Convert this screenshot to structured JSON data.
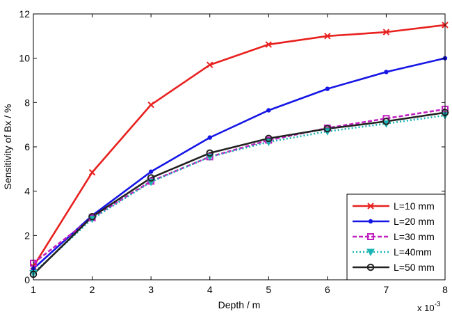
{
  "chart_data": {
    "type": "line",
    "title": "",
    "xlabel": "Depth / m",
    "ylabel": "Sensitivity of Bx / %",
    "x_multiplier": "x 10",
    "x_multiplier_exp": "-3",
    "x": [
      1,
      2,
      3,
      4,
      5,
      6,
      7,
      8
    ],
    "xlim": [
      1,
      8
    ],
    "ylim": [
      0,
      12
    ],
    "xticks": [
      "1",
      "2",
      "3",
      "4",
      "5",
      "6",
      "7",
      "8"
    ],
    "yticks": [
      "0",
      "2",
      "4",
      "6",
      "8",
      "10",
      "12"
    ],
    "grid": false,
    "legend_position": "bottom-right",
    "series": [
      {
        "name": "L=10 mm",
        "color": "#e8201e",
        "marker": "x",
        "dash": "solid",
        "values": [
          0.6,
          4.85,
          7.9,
          9.7,
          10.62,
          11.0,
          11.18,
          11.5
        ]
      },
      {
        "name": "L=20 mm",
        "color": "#1515e6",
        "marker": "dot",
        "dash": "solid",
        "values": [
          0.5,
          2.9,
          4.88,
          6.42,
          7.65,
          8.62,
          9.38,
          10.0
        ]
      },
      {
        "name": "L=30 mm",
        "color": "#c020c0",
        "marker": "square",
        "dash": "dashed",
        "values": [
          0.75,
          2.8,
          4.45,
          5.55,
          6.3,
          6.85,
          7.28,
          7.7
        ]
      },
      {
        "name": "L=40mm",
        "color": "#1ab3b3",
        "marker": "triangle-down",
        "dash": "dotted",
        "values": [
          0.3,
          2.75,
          4.42,
          5.55,
          6.22,
          6.7,
          7.05,
          7.42
        ]
      },
      {
        "name": "L=50 mm",
        "color": "#222222",
        "marker": "circle",
        "dash": "solid",
        "values": [
          0.25,
          2.85,
          4.6,
          5.72,
          6.38,
          6.82,
          7.15,
          7.55
        ]
      }
    ]
  }
}
